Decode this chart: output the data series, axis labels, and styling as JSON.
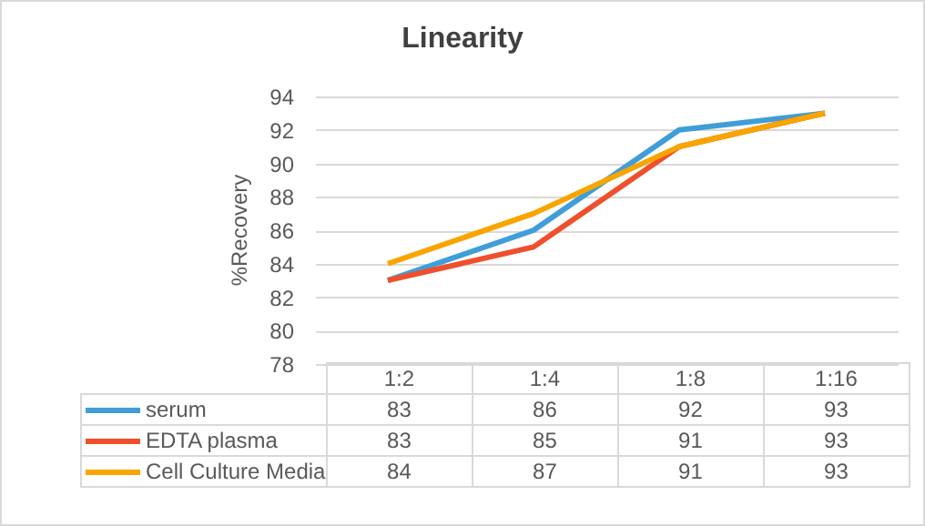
{
  "chart_data": {
    "type": "line",
    "title": "Linearity",
    "ylabel": "%Recovery",
    "categories": [
      "1:2",
      "1:4",
      "1:8",
      "1:16"
    ],
    "series": [
      {
        "name": "serum",
        "color": "#3f9ed8",
        "values": [
          83,
          86,
          92,
          93
        ]
      },
      {
        "name": "EDTA plasma",
        "color": "#ef4f2c",
        "values": [
          83,
          85,
          91,
          93
        ]
      },
      {
        "name": "Cell Culture Media",
        "color": "#f8a500",
        "values": [
          84,
          87,
          91,
          93
        ]
      }
    ],
    "ylim": [
      78,
      94
    ],
    "yticks": [
      78,
      80,
      82,
      84,
      86,
      88,
      90,
      92,
      94
    ],
    "grid": "y",
    "legend": "bottom",
    "data_labels": true,
    "line_style": "solid",
    "marker": "none"
  }
}
